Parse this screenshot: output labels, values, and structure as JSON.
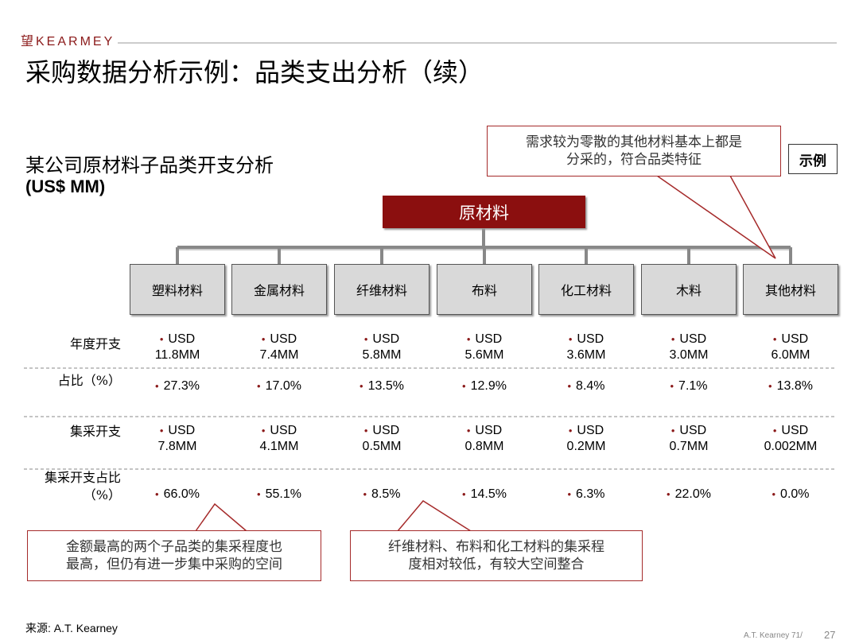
{
  "header": {
    "logo": "望KEARMEY",
    "title": "采购数据分析示例：品类支出分析（续）"
  },
  "subtitle": {
    "line1": "某公司原材料子品类开支分析",
    "line2": "(US$ MM)"
  },
  "badge": "示例",
  "callouts": [
    "需求较为零散的其他材料基本上都是\n分采的，符合品类特征",
    "金额最高的两个子品类的集采程度也\n最高，但仍有进一步集中采购的空间",
    "纤维材料、布料和化工材料的集采程\n度相对较低，有较大空间整合"
  ],
  "tree": {
    "root": "原材料",
    "categories": [
      "塑料材料",
      "金属材料",
      "纤维材料",
      "布料",
      "化工材料",
      "木料",
      "其他材料"
    ]
  },
  "table": {
    "row_labels": [
      "年度开支",
      "占比（%）",
      "集采开支",
      "集采开支占比\n（%）"
    ],
    "rows": [
      [
        "USD\n11.8MM",
        "USD\n7.4MM",
        "USD\n5.8MM",
        "USD\n5.6MM",
        "USD\n3.6MM",
        "USD\n3.0MM",
        "USD\n6.0MM"
      ],
      [
        "27.3%",
        "17.0%",
        "13.5%",
        "12.9%",
        "8.4%",
        "7.1%",
        "13.8%"
      ],
      [
        "USD\n7.8MM",
        "USD\n4.1MM",
        "USD\n0.5MM",
        "USD\n0.8MM",
        "USD\n0.2MM",
        "USD\n0.7MM",
        "USD\n0.002MM"
      ],
      [
        "66.0%",
        "55.1%",
        "8.5%",
        "14.5%",
        "6.3%",
        "22.0%",
        "0.0%"
      ]
    ]
  },
  "footer": {
    "source": "来源: A.T. Kearney",
    "company": "A.T. Kearney 71/",
    "page": "27"
  }
}
